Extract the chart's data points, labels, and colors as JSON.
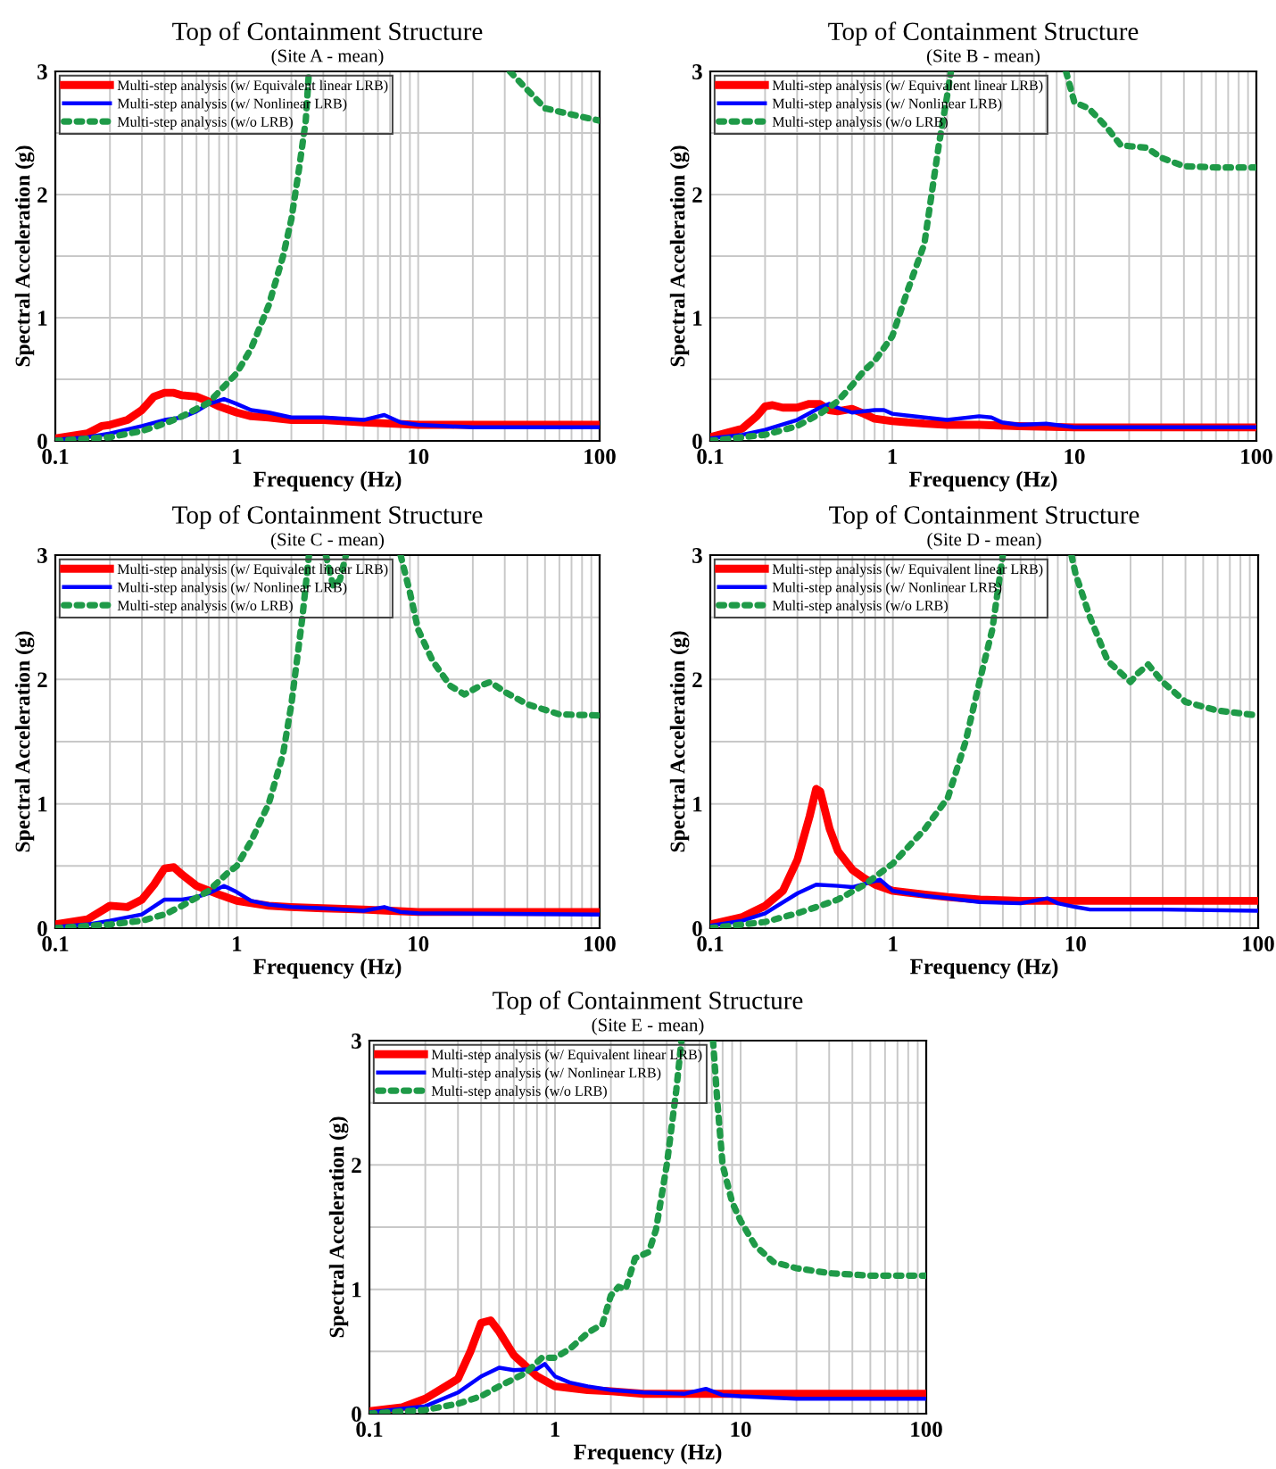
{
  "chart_data": [
    {
      "type": "line",
      "title": "Top of Containment Structure",
      "subtitle": "(Site A - mean)",
      "xlabel": "Frequency (Hz)",
      "ylabel": "Spectral Acceleration (g)",
      "log": "x",
      "grid": true,
      "legend": "top left",
      "xlim": [
        0.1,
        100
      ],
      "ylim": [
        0,
        3
      ],
      "xticks": [
        {
          "value": 0.1,
          "label": "0.1"
        },
        {
          "value": 0.2,
          "label": null
        },
        {
          "value": 0.3,
          "label": null
        },
        {
          "value": 0.4,
          "label": null
        },
        {
          "value": 0.5,
          "label": null
        },
        {
          "value": 0.6,
          "label": null
        },
        {
          "value": 0.7,
          "label": null
        },
        {
          "value": 0.8,
          "label": null
        },
        {
          "value": 0.9,
          "label": null
        },
        1,
        {
          "value": 2,
          "label": null
        },
        {
          "value": 3,
          "label": null
        },
        {
          "value": 4,
          "label": null
        },
        {
          "value": 5,
          "label": null
        },
        {
          "value": 6,
          "label": null
        },
        {
          "value": 7,
          "label": null
        },
        {
          "value": 8,
          "label": null
        },
        {
          "value": 9,
          "label": null
        },
        10,
        {
          "value": 20,
          "label": null
        },
        {
          "value": 30,
          "label": null
        },
        {
          "value": 40,
          "label": null
        },
        {
          "value": 50,
          "label": null
        },
        {
          "value": 60,
          "label": null
        },
        {
          "value": 70,
          "label": null
        },
        {
          "value": 80,
          "label": null
        },
        {
          "value": 90,
          "label": null
        },
        100
      ],
      "yticks": [
        0,
        {
          "value": 0.5,
          "label": null
        },
        1,
        {
          "value": 1.5,
          "label": null
        },
        2,
        {
          "value": 2.5,
          "label": null
        },
        3
      ],
      "series": [
        {
          "name": "Multi-step analysis (w/ Equivalent linear LRB)",
          "color": "#ff0000",
          "line_style": "solid",
          "x": [
            0.1,
            0.15,
            0.18,
            0.2,
            0.25,
            0.3,
            0.35,
            0.4,
            0.45,
            0.5,
            0.6,
            0.7,
            0.8,
            1,
            1.2,
            1.5,
            2,
            3,
            5,
            7,
            10,
            20,
            100
          ],
          "values": [
            0.02,
            0.06,
            0.12,
            0.13,
            0.17,
            0.25,
            0.36,
            0.39,
            0.39,
            0.37,
            0.36,
            0.32,
            0.28,
            0.23,
            0.2,
            0.19,
            0.17,
            0.17,
            0.15,
            0.14,
            0.13,
            0.13,
            0.13
          ]
        },
        {
          "name": "Multi-step analysis (w/ Nonlinear LRB)",
          "color": "#0000ff",
          "line_style": "solid",
          "x": [
            0.1,
            0.15,
            0.2,
            0.3,
            0.4,
            0.5,
            0.6,
            0.7,
            0.85,
            1,
            1.2,
            1.5,
            2,
            3,
            5,
            6.5,
            8,
            10,
            20,
            100
          ],
          "values": [
            0.01,
            0.03,
            0.06,
            0.12,
            0.17,
            0.19,
            0.24,
            0.3,
            0.34,
            0.3,
            0.25,
            0.23,
            0.19,
            0.19,
            0.17,
            0.21,
            0.15,
            0.13,
            0.11,
            0.11
          ]
        },
        {
          "name": "Multi-step analysis (w/o LRB)",
          "color": "#1f9a48",
          "line_style": "dotted",
          "x": [
            0.1,
            0.2,
            0.3,
            0.4,
            0.5,
            0.6,
            0.7,
            0.8,
            1,
            1.2,
            1.5,
            1.8,
            2,
            2.2,
            2.4,
            2.5,
            10,
            32,
            40,
            50,
            70,
            100
          ],
          "values": [
            0.0,
            0.03,
            0.08,
            0.14,
            0.2,
            0.26,
            0.31,
            0.4,
            0.55,
            0.75,
            1.1,
            1.5,
            1.8,
            2.2,
            2.6,
            3.0,
            null,
            3.0,
            2.85,
            2.7,
            2.65,
            2.6
          ]
        }
      ]
    },
    {
      "type": "line",
      "title": "Top of Containment Structure",
      "subtitle": "(Site B - mean)",
      "xlabel": "Frequency (Hz)",
      "ylabel": "Spectral Acceleration (g)",
      "log": "x",
      "grid": true,
      "legend": "top left",
      "xlim": [
        0.1,
        100
      ],
      "ylim": [
        0,
        3
      ],
      "xticks": [
        {
          "value": 0.1,
          "label": "0.1"
        },
        {
          "value": 0.2,
          "label": null
        },
        {
          "value": 0.3,
          "label": null
        },
        {
          "value": 0.4,
          "label": null
        },
        {
          "value": 0.5,
          "label": null
        },
        {
          "value": 0.6,
          "label": null
        },
        {
          "value": 0.7,
          "label": null
        },
        {
          "value": 0.8,
          "label": null
        },
        {
          "value": 0.9,
          "label": null
        },
        1,
        {
          "value": 2,
          "label": null
        },
        {
          "value": 3,
          "label": null
        },
        {
          "value": 4,
          "label": null
        },
        {
          "value": 5,
          "label": null
        },
        {
          "value": 6,
          "label": null
        },
        {
          "value": 7,
          "label": null
        },
        {
          "value": 8,
          "label": null
        },
        {
          "value": 9,
          "label": null
        },
        10,
        {
          "value": 20,
          "label": null
        },
        {
          "value": 30,
          "label": null
        },
        {
          "value": 40,
          "label": null
        },
        {
          "value": 50,
          "label": null
        },
        {
          "value": 60,
          "label": null
        },
        {
          "value": 70,
          "label": null
        },
        {
          "value": 80,
          "label": null
        },
        {
          "value": 90,
          "label": null
        },
        100
      ],
      "yticks": [
        0,
        {
          "value": 0.5,
          "label": null
        },
        1,
        {
          "value": 1.5,
          "label": null
        },
        2,
        {
          "value": 2.5,
          "label": null
        },
        3
      ],
      "series": [
        {
          "name": "Multi-step analysis (w/ Equivalent linear LRB)",
          "color": "#ff0000",
          "line_style": "solid",
          "x": [
            0.1,
            0.15,
            0.18,
            0.2,
            0.22,
            0.25,
            0.3,
            0.35,
            0.4,
            0.45,
            0.5,
            0.6,
            0.7,
            0.8,
            1,
            1.5,
            2,
            3,
            5,
            10,
            100
          ],
          "values": [
            0.03,
            0.1,
            0.2,
            0.28,
            0.29,
            0.27,
            0.27,
            0.3,
            0.3,
            0.25,
            0.24,
            0.26,
            0.22,
            0.18,
            0.16,
            0.14,
            0.13,
            0.13,
            0.12,
            0.11,
            0.11
          ]
        },
        {
          "name": "Multi-step analysis (w/ Nonlinear LRB)",
          "color": "#0000ff",
          "line_style": "solid",
          "x": [
            0.1,
            0.15,
            0.2,
            0.3,
            0.4,
            0.45,
            0.5,
            0.6,
            0.8,
            0.9,
            1,
            1.5,
            2,
            3,
            3.5,
            4,
            5,
            7,
            10,
            100
          ],
          "values": [
            0.02,
            0.05,
            0.09,
            0.17,
            0.27,
            0.3,
            0.27,
            0.23,
            0.25,
            0.25,
            0.22,
            0.19,
            0.17,
            0.2,
            0.19,
            0.15,
            0.13,
            0.14,
            0.11,
            0.11
          ]
        },
        {
          "name": "Multi-step analysis (w/o LRB)",
          "color": "#1f9a48",
          "line_style": "dotted",
          "x": [
            0.1,
            0.2,
            0.3,
            0.4,
            0.5,
            0.6,
            0.7,
            0.8,
            1,
            1.2,
            1.5,
            1.8,
            2,
            2.1,
            5,
            9,
            10,
            12,
            15,
            18,
            25,
            30,
            40,
            60,
            100
          ],
          "values": [
            0.0,
            0.05,
            0.12,
            0.22,
            0.32,
            0.45,
            0.57,
            0.65,
            0.85,
            1.2,
            1.6,
            2.4,
            2.8,
            3.0,
            null,
            3.0,
            2.75,
            2.7,
            2.55,
            2.4,
            2.38,
            2.3,
            2.23,
            2.22,
            2.22
          ]
        }
      ]
    },
    {
      "type": "line",
      "title": "Top of Containment Structure",
      "subtitle": "(Site C - mean)",
      "xlabel": "Frequency (Hz)",
      "ylabel": "Spectral Acceleration (g)",
      "log": "x",
      "grid": true,
      "legend": "top left",
      "xlim": [
        0.1,
        100
      ],
      "ylim": [
        0,
        3
      ],
      "xticks": [
        {
          "value": 0.1,
          "label": "0.1"
        },
        {
          "value": 0.2,
          "label": null
        },
        {
          "value": 0.3,
          "label": null
        },
        {
          "value": 0.4,
          "label": null
        },
        {
          "value": 0.5,
          "label": null
        },
        {
          "value": 0.6,
          "label": null
        },
        {
          "value": 0.7,
          "label": null
        },
        {
          "value": 0.8,
          "label": null
        },
        {
          "value": 0.9,
          "label": null
        },
        1,
        {
          "value": 2,
          "label": null
        },
        {
          "value": 3,
          "label": null
        },
        {
          "value": 4,
          "label": null
        },
        {
          "value": 5,
          "label": null
        },
        {
          "value": 6,
          "label": null
        },
        {
          "value": 7,
          "label": null
        },
        {
          "value": 8,
          "label": null
        },
        {
          "value": 9,
          "label": null
        },
        10,
        {
          "value": 20,
          "label": null
        },
        {
          "value": 30,
          "label": null
        },
        {
          "value": 40,
          "label": null
        },
        {
          "value": 50,
          "label": null
        },
        {
          "value": 60,
          "label": null
        },
        {
          "value": 70,
          "label": null
        },
        {
          "value": 80,
          "label": null
        },
        {
          "value": 90,
          "label": null
        },
        100
      ],
      "yticks": [
        0,
        {
          "value": 0.5,
          "label": null
        },
        1,
        {
          "value": 1.5,
          "label": null
        },
        2,
        {
          "value": 2.5,
          "label": null
        },
        3
      ],
      "series": [
        {
          "name": "Multi-step analysis (w/ Equivalent linear LRB)",
          "color": "#ff0000",
          "line_style": "solid",
          "x": [
            0.1,
            0.15,
            0.2,
            0.25,
            0.3,
            0.35,
            0.4,
            0.45,
            0.5,
            0.6,
            0.8,
            1,
            1.5,
            2,
            3,
            5,
            7,
            10,
            100
          ],
          "values": [
            0.03,
            0.07,
            0.18,
            0.17,
            0.23,
            0.35,
            0.48,
            0.49,
            0.43,
            0.34,
            0.27,
            0.22,
            0.18,
            0.17,
            0.16,
            0.15,
            0.14,
            0.13,
            0.13
          ]
        },
        {
          "name": "Multi-step analysis (w/ Nonlinear LRB)",
          "color": "#0000ff",
          "line_style": "solid",
          "x": [
            0.1,
            0.15,
            0.2,
            0.3,
            0.4,
            0.5,
            0.6,
            0.7,
            0.85,
            1,
            1.2,
            1.5,
            2,
            3,
            5,
            6.5,
            8,
            10,
            100
          ],
          "values": [
            0.01,
            0.03,
            0.06,
            0.11,
            0.23,
            0.23,
            0.25,
            0.28,
            0.34,
            0.29,
            0.22,
            0.19,
            0.17,
            0.16,
            0.14,
            0.17,
            0.13,
            0.12,
            0.11
          ]
        },
        {
          "name": "Multi-step analysis (w/o LRB)",
          "color": "#1f9a48",
          "line_style": "dotted",
          "x": [
            0.1,
            0.2,
            0.3,
            0.4,
            0.5,
            0.7,
            0.9,
            1,
            1.2,
            1.5,
            1.8,
            2,
            2.3,
            2.5,
            2.8,
            3.1,
            3.4,
            3.7,
            4,
            5,
            8,
            9,
            10,
            12,
            15,
            18,
            22,
            25,
            30,
            40,
            60,
            100
          ],
          "values": [
            0.0,
            0.03,
            0.06,
            0.11,
            0.18,
            0.3,
            0.45,
            0.5,
            0.7,
            1.0,
            1.4,
            1.8,
            2.5,
            3.0,
            null,
            3.0,
            2.75,
            2.8,
            3.0,
            null,
            3.0,
            2.7,
            2.4,
            2.15,
            1.95,
            1.88,
            1.95,
            1.98,
            1.9,
            1.8,
            1.72,
            1.71
          ]
        }
      ]
    },
    {
      "type": "line",
      "title": "Top of Containment Structure",
      "subtitle": "(Site D - mean)",
      "xlabel": "Frequency (Hz)",
      "ylabel": "Spectral Acceleration (g)",
      "log": "x",
      "grid": true,
      "legend": "top left",
      "xlim": [
        0.1,
        100
      ],
      "ylim": [
        0,
        3
      ],
      "xticks": [
        {
          "value": 0.1,
          "label": "0.1"
        },
        {
          "value": 0.2,
          "label": null
        },
        {
          "value": 0.3,
          "label": null
        },
        {
          "value": 0.4,
          "label": null
        },
        {
          "value": 0.5,
          "label": null
        },
        {
          "value": 0.6,
          "label": null
        },
        {
          "value": 0.7,
          "label": null
        },
        {
          "value": 0.8,
          "label": null
        },
        {
          "value": 0.9,
          "label": null
        },
        1,
        {
          "value": 2,
          "label": null
        },
        {
          "value": 3,
          "label": null
        },
        {
          "value": 4,
          "label": null
        },
        {
          "value": 5,
          "label": null
        },
        {
          "value": 6,
          "label": null
        },
        {
          "value": 7,
          "label": null
        },
        {
          "value": 8,
          "label": null
        },
        {
          "value": 9,
          "label": null
        },
        10,
        {
          "value": 20,
          "label": null
        },
        {
          "value": 30,
          "label": null
        },
        {
          "value": 40,
          "label": null
        },
        {
          "value": 50,
          "label": null
        },
        {
          "value": 60,
          "label": null
        },
        {
          "value": 70,
          "label": null
        },
        {
          "value": 80,
          "label": null
        },
        {
          "value": 90,
          "label": null
        },
        100
      ],
      "yticks": [
        0,
        {
          "value": 0.5,
          "label": null
        },
        1,
        {
          "value": 1.5,
          "label": null
        },
        2,
        {
          "value": 2.5,
          "label": null
        },
        3
      ],
      "series": [
        {
          "name": "Multi-step analysis (w/ Equivalent linear LRB)",
          "color": "#ff0000",
          "line_style": "solid",
          "x": [
            0.1,
            0.15,
            0.2,
            0.25,
            0.3,
            0.35,
            0.38,
            0.4,
            0.45,
            0.5,
            0.6,
            0.7,
            0.8,
            1,
            1.5,
            2,
            3,
            5,
            10,
            100
          ],
          "values": [
            0.03,
            0.09,
            0.18,
            0.3,
            0.55,
            0.9,
            1.12,
            1.1,
            0.8,
            0.62,
            0.47,
            0.4,
            0.35,
            0.3,
            0.27,
            0.25,
            0.23,
            0.22,
            0.22,
            0.22
          ]
        },
        {
          "name": "Multi-step analysis (w/ Nonlinear LRB)",
          "color": "#0000ff",
          "line_style": "solid",
          "x": [
            0.1,
            0.15,
            0.2,
            0.3,
            0.38,
            0.5,
            0.6,
            0.8,
            0.85,
            1,
            1.5,
            2,
            3,
            5,
            7,
            8,
            10,
            12,
            30,
            100
          ],
          "values": [
            0.02,
            0.06,
            0.12,
            0.28,
            0.35,
            0.34,
            0.33,
            0.38,
            0.39,
            0.3,
            0.26,
            0.24,
            0.21,
            0.2,
            0.24,
            0.2,
            0.17,
            0.15,
            0.15,
            0.14
          ]
        },
        {
          "name": "Multi-step analysis (w/o LRB)",
          "color": "#1f9a48",
          "line_style": "dotted",
          "x": [
            0.1,
            0.2,
            0.3,
            0.4,
            0.5,
            0.7,
            1,
            1.5,
            2,
            2.5,
            3,
            3.5,
            4,
            6,
            9.5,
            10,
            12,
            15,
            20,
            22,
            25,
            30,
            40,
            60,
            100
          ],
          "values": [
            0.0,
            0.05,
            0.12,
            0.18,
            0.23,
            0.35,
            0.52,
            0.8,
            1.05,
            1.5,
            2.0,
            2.4,
            3.0,
            null,
            3.0,
            2.85,
            2.5,
            2.15,
            1.98,
            2.05,
            2.12,
            1.98,
            1.82,
            1.75,
            1.71
          ]
        }
      ]
    },
    {
      "type": "line",
      "title": "Top of Containment Structure",
      "subtitle": "(Site E - mean)",
      "xlabel": "Frequency (Hz)",
      "ylabel": "Spectral Acceleration (g)",
      "log": "x",
      "grid": true,
      "legend": "top left",
      "xlim": [
        0.1,
        100
      ],
      "ylim": [
        0,
        3
      ],
      "xticks": [
        {
          "value": 0.1,
          "label": "0.1"
        },
        {
          "value": 0.2,
          "label": null
        },
        {
          "value": 0.3,
          "label": null
        },
        {
          "value": 0.4,
          "label": null
        },
        {
          "value": 0.5,
          "label": null
        },
        {
          "value": 0.6,
          "label": null
        },
        {
          "value": 0.7,
          "label": null
        },
        {
          "value": 0.8,
          "label": null
        },
        {
          "value": 0.9,
          "label": null
        },
        1,
        {
          "value": 2,
          "label": null
        },
        {
          "value": 3,
          "label": null
        },
        {
          "value": 4,
          "label": null
        },
        {
          "value": 5,
          "label": null
        },
        {
          "value": 6,
          "label": null
        },
        {
          "value": 7,
          "label": null
        },
        {
          "value": 8,
          "label": null
        },
        {
          "value": 9,
          "label": null
        },
        10,
        {
          "value": 20,
          "label": null
        },
        {
          "value": 30,
          "label": null
        },
        {
          "value": 40,
          "label": null
        },
        {
          "value": 50,
          "label": null
        },
        {
          "value": 60,
          "label": null
        },
        {
          "value": 70,
          "label": null
        },
        {
          "value": 80,
          "label": null
        },
        {
          "value": 90,
          "label": null
        },
        100
      ],
      "yticks": [
        0,
        {
          "value": 0.5,
          "label": null
        },
        1,
        {
          "value": 1.5,
          "label": null
        },
        2,
        {
          "value": 2.5,
          "label": null
        },
        3
      ],
      "series": [
        {
          "name": "Multi-step analysis (w/ Equivalent linear LRB)",
          "color": "#ff0000",
          "line_style": "solid",
          "x": [
            0.1,
            0.15,
            0.2,
            0.3,
            0.35,
            0.4,
            0.45,
            0.5,
            0.6,
            0.8,
            1,
            1.5,
            2,
            3,
            5,
            10,
            100
          ],
          "values": [
            0.02,
            0.05,
            0.12,
            0.28,
            0.5,
            0.73,
            0.75,
            0.66,
            0.47,
            0.3,
            0.22,
            0.19,
            0.18,
            0.16,
            0.16,
            0.16,
            0.16
          ]
        },
        {
          "name": "Multi-step analysis (w/ Nonlinear LRB)",
          "color": "#0000ff",
          "line_style": "solid",
          "x": [
            0.1,
            0.2,
            0.3,
            0.4,
            0.5,
            0.6,
            0.8,
            0.88,
            1,
            1.2,
            1.5,
            2,
            3,
            5,
            6.5,
            8,
            10,
            20,
            100
          ],
          "values": [
            0.01,
            0.06,
            0.17,
            0.3,
            0.37,
            0.35,
            0.36,
            0.4,
            0.3,
            0.25,
            0.22,
            0.19,
            0.17,
            0.16,
            0.2,
            0.15,
            0.14,
            0.12,
            0.12
          ]
        },
        {
          "name": "Multi-step analysis (w/o LRB)",
          "color": "#1f9a48",
          "line_style": "dotted",
          "x": [
            0.1,
            0.2,
            0.3,
            0.4,
            0.5,
            0.7,
            0.85,
            1,
            1.2,
            1.5,
            1.8,
            2,
            2.2,
            2.4,
            2.7,
            3.2,
            3.5,
            4,
            4.5,
            4.8,
            6,
            7.1,
            7.5,
            8,
            9,
            10,
            12,
            15,
            20,
            30,
            50,
            100
          ],
          "values": [
            0.0,
            0.03,
            0.08,
            0.14,
            0.22,
            0.33,
            0.45,
            0.45,
            0.52,
            0.65,
            0.72,
            0.95,
            1.02,
            1.0,
            1.25,
            1.3,
            1.48,
            2.0,
            2.6,
            3.0,
            null,
            3.0,
            2.5,
            2.0,
            1.7,
            1.55,
            1.35,
            1.22,
            1.17,
            1.13,
            1.11,
            1.11
          ]
        }
      ]
    }
  ]
}
